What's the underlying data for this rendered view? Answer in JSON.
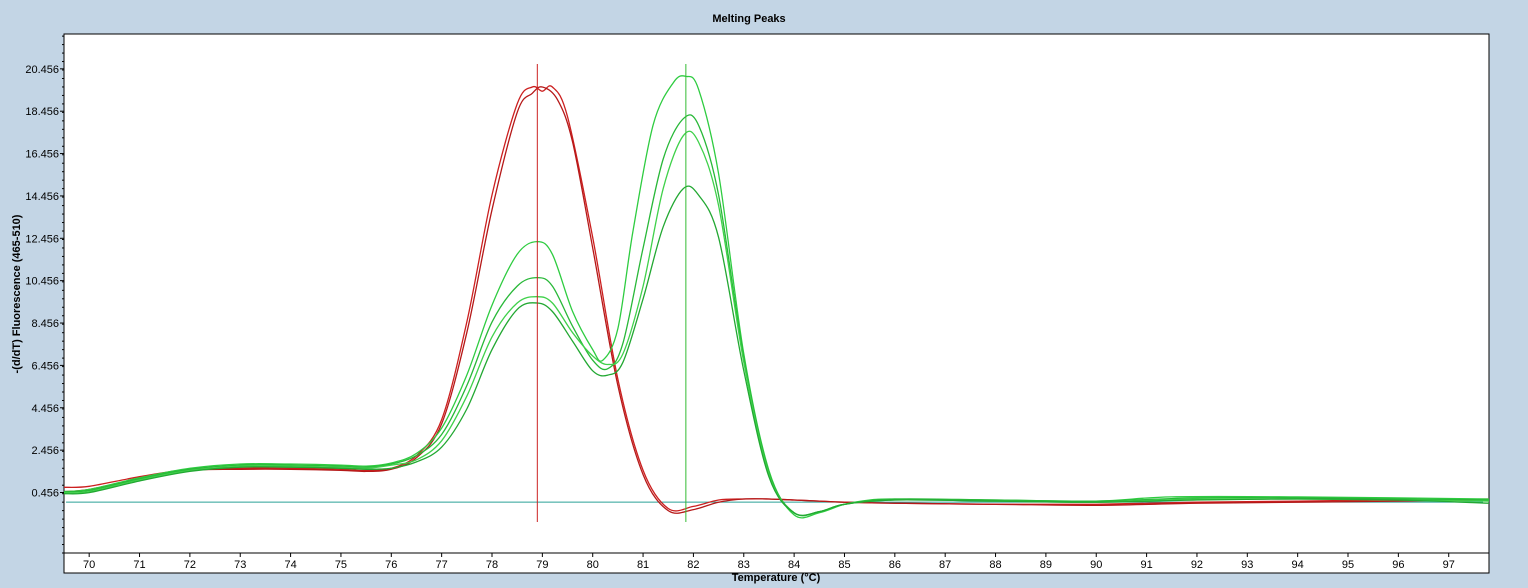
{
  "chart_data": {
    "type": "line",
    "title": "Melting Peaks",
    "xlabel": "Temperature (°C)",
    "ylabel": "-(d/dT) Fluorescence (465-510)",
    "xlim": [
      69.5,
      97.8
    ],
    "ylim": [
      -2.4,
      22.1
    ],
    "x_ticks": [
      "70",
      "71",
      "72",
      "73",
      "74",
      "75",
      "76",
      "77",
      "78",
      "79",
      "80",
      "81",
      "82",
      "83",
      "84",
      "85",
      "86",
      "87",
      "88",
      "89",
      "90",
      "91",
      "92",
      "93",
      "94",
      "95",
      "96",
      "97"
    ],
    "y_ticks": [
      "0.456",
      "2.456",
      "4.456",
      "6.456",
      "8.456",
      "10.456",
      "12.456",
      "14.456",
      "16.456",
      "18.456",
      "20.456"
    ],
    "grid": false,
    "legend": "none",
    "baseline": {
      "y": 0.0,
      "color": "#2aa198"
    },
    "markers": [
      {
        "x": 78.9,
        "color": "#cc2222"
      },
      {
        "x": 81.85,
        "color": "#33bb33"
      }
    ],
    "series": [
      {
        "color": "#cc1f1f",
        "x": [
          69.5,
          70,
          71,
          72,
          73,
          74,
          75,
          75.5,
          76,
          76.5,
          77,
          77.5,
          78,
          78.5,
          78.8,
          79.0,
          79.2,
          79.5,
          80,
          80.5,
          81,
          81.5,
          82,
          82.5,
          83,
          83.5,
          84,
          84.5,
          85,
          86,
          88,
          90,
          92,
          94,
          96,
          97.8
        ],
        "y": [
          0.7,
          0.75,
          1.2,
          1.55,
          1.6,
          1.6,
          1.55,
          1.5,
          1.6,
          2.2,
          3.9,
          8.5,
          14.5,
          18.8,
          19.6,
          19.4,
          19.6,
          18.2,
          12.5,
          5.8,
          1.5,
          -0.3,
          -0.2,
          0.1,
          0.15,
          0.15,
          0.1,
          0.05,
          0.0,
          -0.05,
          -0.1,
          -0.1,
          0.0,
          0.05,
          0.1,
          0.15
        ]
      },
      {
        "color": "#b51818",
        "x": [
          69.5,
          70,
          71,
          72,
          73,
          74,
          75,
          75.5,
          76,
          76.5,
          77,
          77.5,
          78,
          78.5,
          78.8,
          79.0,
          79.3,
          79.6,
          80,
          80.5,
          81,
          81.5,
          82,
          82.5,
          83,
          83.5,
          84,
          84.5,
          85,
          86,
          88,
          90,
          92,
          94,
          96,
          97.8
        ],
        "y": [
          0.5,
          0.6,
          1.1,
          1.5,
          1.55,
          1.55,
          1.5,
          1.45,
          1.55,
          2.1,
          3.7,
          8.0,
          13.8,
          18.4,
          19.3,
          19.6,
          19.0,
          17.0,
          12.0,
          5.5,
          1.3,
          -0.4,
          -0.35,
          0.0,
          0.15,
          0.15,
          0.1,
          0.05,
          0.0,
          -0.05,
          -0.1,
          -0.15,
          -0.05,
          0.0,
          0.05,
          0.1
        ]
      },
      {
        "color": "#2ecc40",
        "x": [
          69.5,
          70,
          71,
          72,
          73,
          74,
          75,
          75.5,
          76,
          76.5,
          77,
          77.5,
          78,
          78.5,
          78.9,
          79.2,
          79.6,
          80,
          80.2,
          80.5,
          80.8,
          81.2,
          81.6,
          81.85,
          82.1,
          82.5,
          83,
          83.5,
          84,
          84.5,
          85,
          85.5,
          86,
          88,
          90,
          91.5,
          94,
          96,
          97.8
        ],
        "y": [
          0.5,
          0.6,
          1.15,
          1.6,
          1.8,
          1.8,
          1.75,
          1.7,
          1.85,
          2.3,
          3.5,
          6.0,
          9.3,
          11.7,
          12.3,
          11.7,
          9.0,
          7.2,
          6.7,
          8.2,
          12.8,
          17.8,
          19.8,
          20.1,
          19.5,
          15.5,
          7.0,
          1.5,
          -0.6,
          -0.5,
          -0.1,
          0.1,
          0.15,
          0.1,
          0.05,
          0.25,
          0.25,
          0.2,
          0.15
        ]
      },
      {
        "color": "#28b838",
        "x": [
          69.5,
          70,
          71,
          72,
          73,
          74,
          75,
          75.5,
          76,
          76.5,
          77,
          77.5,
          78,
          78.5,
          78.9,
          79.2,
          79.6,
          80,
          80.3,
          80.6,
          81,
          81.4,
          81.8,
          82.1,
          82.5,
          83,
          83.5,
          84,
          84.5,
          85,
          86,
          88,
          90,
          92,
          94,
          96,
          97.8
        ],
        "y": [
          0.5,
          0.55,
          1.1,
          1.55,
          1.75,
          1.75,
          1.7,
          1.65,
          1.8,
          2.2,
          3.2,
          5.5,
          8.5,
          10.2,
          10.6,
          10.2,
          8.3,
          6.7,
          6.3,
          7.5,
          12.0,
          16.2,
          18.1,
          17.8,
          14.5,
          6.8,
          1.4,
          -0.5,
          -0.45,
          -0.1,
          0.15,
          0.1,
          0.05,
          0.2,
          0.2,
          0.15,
          0.1
        ]
      },
      {
        "color": "#3fd14a",
        "x": [
          69.5,
          70,
          71,
          72,
          73,
          74,
          75,
          75.5,
          76,
          76.5,
          77,
          77.5,
          78,
          78.5,
          78.9,
          79.2,
          79.6,
          80,
          80.3,
          80.6,
          81,
          81.4,
          81.8,
          82.1,
          82.5,
          83,
          83.5,
          84,
          84.5,
          85,
          86,
          88,
          90,
          92,
          94,
          96,
          97.8
        ],
        "y": [
          0.45,
          0.5,
          1.05,
          1.5,
          1.7,
          1.7,
          1.65,
          1.6,
          1.75,
          2.0,
          2.9,
          5.0,
          7.8,
          9.4,
          9.7,
          9.4,
          8.0,
          6.9,
          6.5,
          7.0,
          10.2,
          14.8,
          17.3,
          17.0,
          14.0,
          6.6,
          1.3,
          -0.5,
          -0.45,
          -0.1,
          0.1,
          0.05,
          0.0,
          0.15,
          0.15,
          0.1,
          0.05
        ]
      },
      {
        "color": "#22a832",
        "x": [
          69.5,
          70,
          71,
          72,
          73,
          74,
          75,
          75.5,
          76,
          76.5,
          77,
          77.5,
          78,
          78.5,
          78.9,
          79.2,
          79.6,
          80,
          80.3,
          80.6,
          81,
          81.4,
          81.8,
          82.1,
          82.5,
          83,
          83.5,
          84,
          84.5,
          85,
          86,
          88,
          90,
          92,
          94,
          96,
          97.8
        ],
        "y": [
          0.4,
          0.45,
          1.0,
          1.45,
          1.65,
          1.65,
          1.6,
          1.55,
          1.6,
          1.9,
          2.6,
          4.4,
          7.2,
          9.1,
          9.4,
          9.0,
          7.6,
          6.2,
          6.0,
          6.6,
          9.6,
          13.0,
          14.8,
          14.5,
          12.5,
          6.2,
          1.2,
          -0.5,
          -0.45,
          -0.1,
          0.1,
          0.05,
          0.0,
          0.1,
          0.15,
          0.1,
          -0.05
        ]
      }
    ]
  }
}
